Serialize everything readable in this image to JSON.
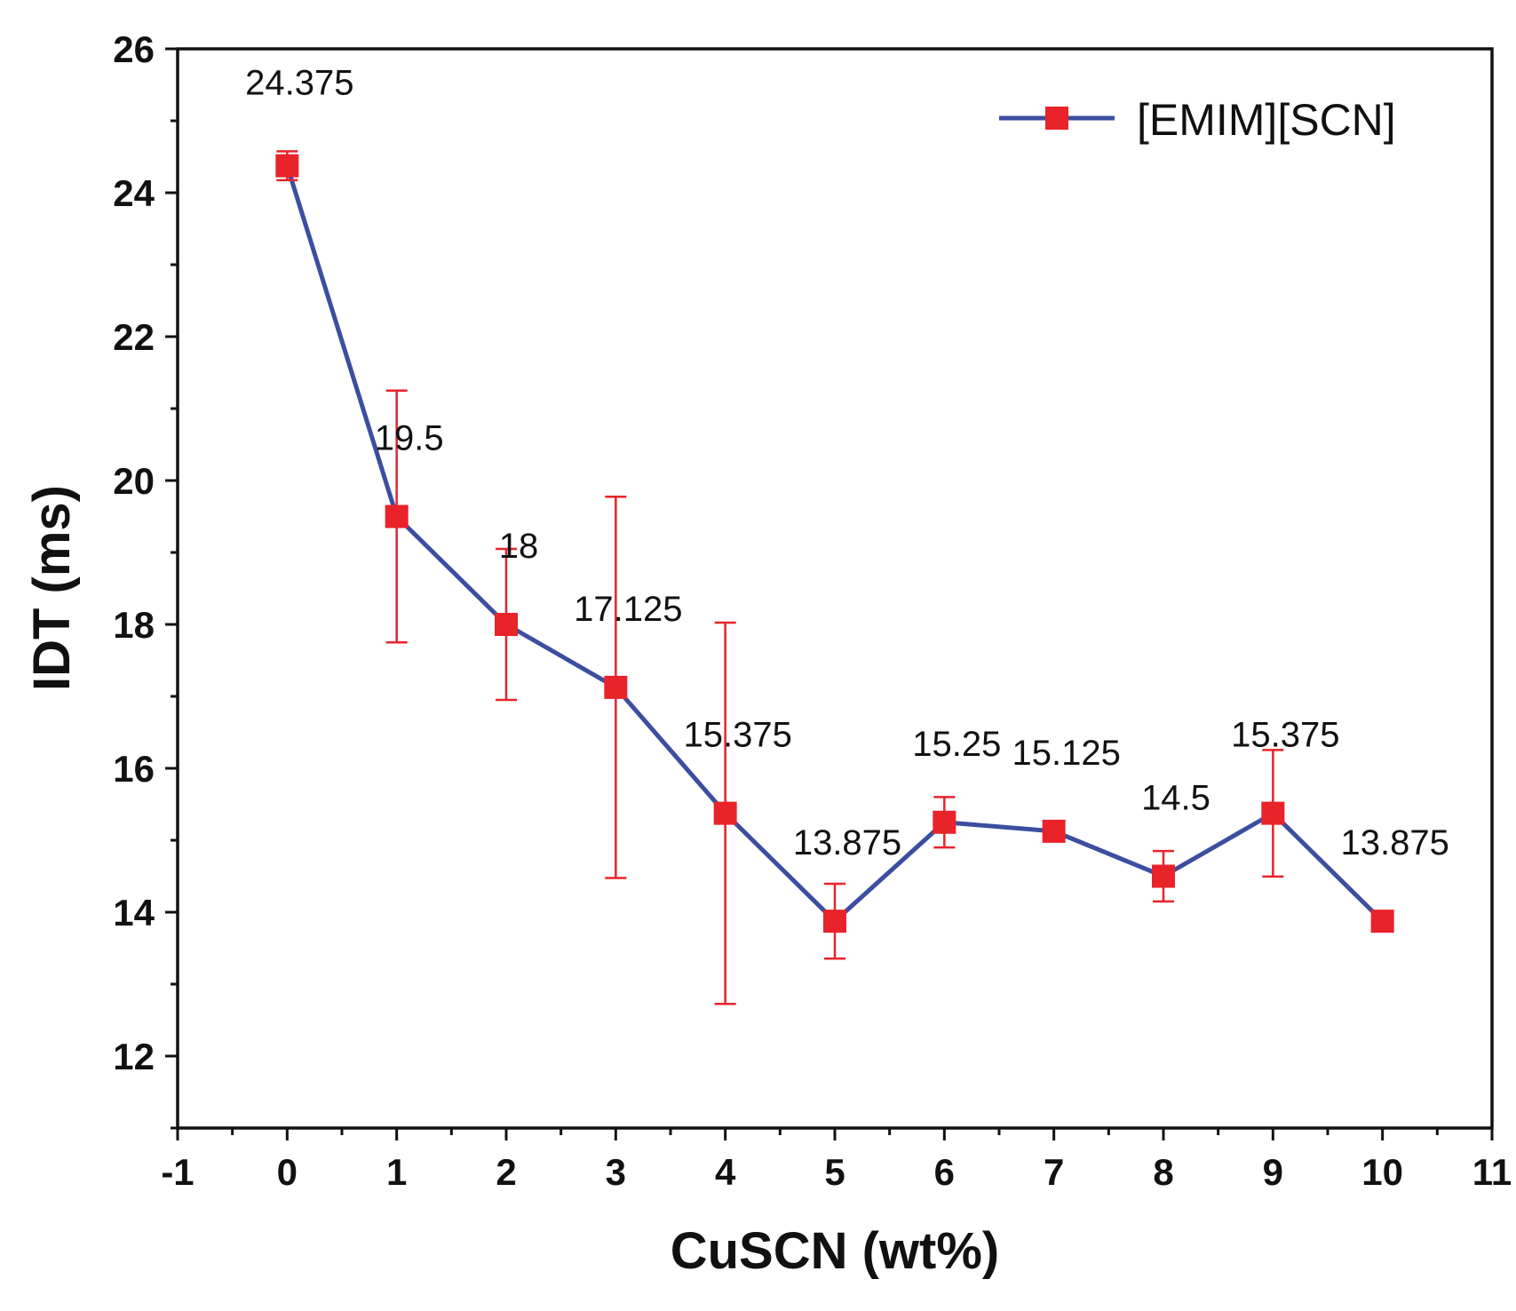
{
  "chart_data": {
    "type": "line",
    "xlabel": "CuSCN (wt%)",
    "ylabel": "IDT (ms)",
    "xlim": [
      -1,
      11
    ],
    "ylim": [
      11,
      26
    ],
    "x_ticks": [
      "-1",
      "0",
      "1",
      "2",
      "3",
      "4",
      "5",
      "6",
      "7",
      "8",
      "9",
      "10",
      "11"
    ],
    "y_ticks": [
      "12",
      "14",
      "16",
      "18",
      "20",
      "22",
      "24",
      "26"
    ],
    "grid": false,
    "legend_position": "top-right",
    "series": [
      {
        "name": "[EMIM][SCN]",
        "x": [
          0,
          1,
          2,
          3,
          4,
          5,
          6,
          7,
          8,
          9,
          10
        ],
        "values": [
          24.375,
          19.5,
          18,
          17.125,
          15.375,
          13.875,
          15.25,
          15.125,
          14.5,
          15.375,
          13.875
        ],
        "error": [
          0.2,
          1.75,
          1.05,
          2.65,
          2.65,
          0.52,
          0.35,
          0.08,
          0.35,
          0.88,
          0.08
        ],
        "data_labels": [
          "24.375",
          "19.5",
          "18",
          "17.125",
          "15.375",
          "13.875",
          "15.25",
          "15.125",
          "14.5",
          "15.375",
          "13.875"
        ],
        "line_color": "#3b4ea0",
        "marker_color": "#e8232a",
        "marker": "square"
      }
    ]
  }
}
